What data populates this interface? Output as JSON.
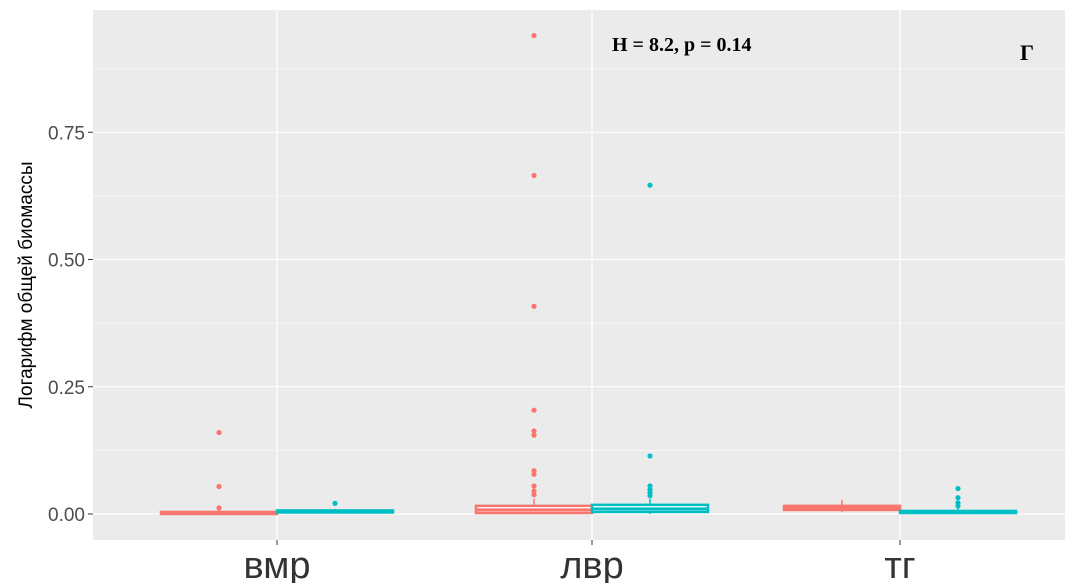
{
  "chart_data": {
    "type": "boxplot",
    "ylabel": "Логарифм общей биомассы",
    "xlabel": "",
    "categories": [
      "вмр",
      "лвр",
      "тг"
    ],
    "yticks": [
      "0.00",
      "0.25",
      "0.50",
      "0.75"
    ],
    "ylim": [
      -0.05,
      0.97
    ],
    "annotation": "H = 8.2, p = 0.14",
    "panel_label": "Г",
    "grid": true,
    "legend": "none",
    "series": [
      {
        "color": "#F8766D",
        "boxes": [
          {
            "category": "вмр",
            "q1": 0.001,
            "median": 0.002,
            "q3": 0.004,
            "whisker_low": 0.0,
            "whisker_high": 0.008,
            "outliers": [
              0.16,
              0.054,
              0.012
            ]
          },
          {
            "category": "лвр",
            "q1": 0.002,
            "median": 0.008,
            "q3": 0.016,
            "whisker_low": 0.0,
            "whisker_high": 0.03,
            "outliers": [
              0.94,
              0.665,
              0.408,
              0.204,
              0.163,
              0.155,
              0.085,
              0.078,
              0.055,
              0.045,
              0.038
            ]
          },
          {
            "category": "тг",
            "q1": 0.008,
            "median": 0.012,
            "q3": 0.016,
            "whisker_low": 0.004,
            "whisker_high": 0.028,
            "outliers": []
          }
        ]
      },
      {
        "color": "#00BFC4",
        "boxes": [
          {
            "category": "вмр",
            "q1": 0.003,
            "median": 0.005,
            "q3": 0.007,
            "whisker_low": 0.002,
            "whisker_high": 0.01,
            "outliers": [
              0.021
            ]
          },
          {
            "category": "лвр",
            "q1": 0.004,
            "median": 0.01,
            "q3": 0.018,
            "whisker_low": 0.0,
            "whisker_high": 0.03,
            "outliers": [
              0.646,
              0.114,
              0.055,
              0.048,
              0.042,
              0.036
            ]
          },
          {
            "category": "тг",
            "q1": 0.002,
            "median": 0.004,
            "q3": 0.006,
            "whisker_low": 0.0,
            "whisker_high": 0.012,
            "outliers": [
              0.05,
              0.032,
              0.022,
              0.016
            ]
          }
        ]
      }
    ]
  }
}
